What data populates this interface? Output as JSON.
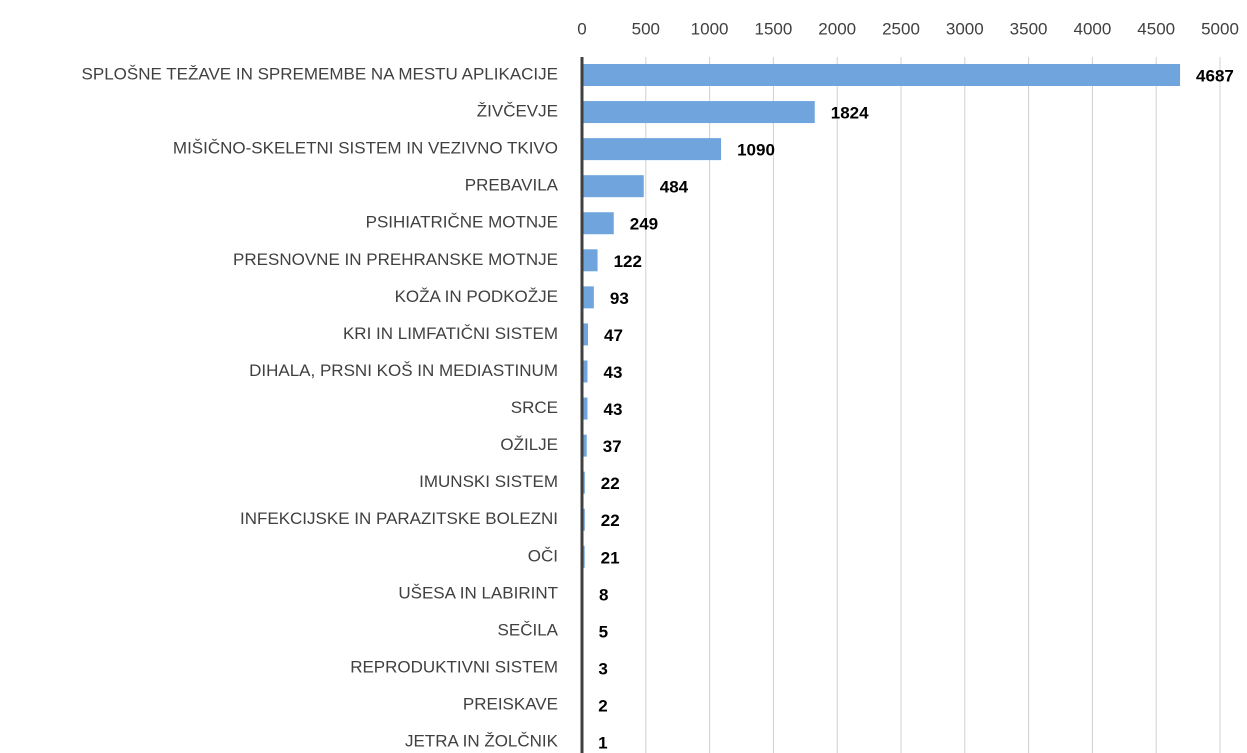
{
  "chart_data": {
    "type": "barh",
    "categories": [
      "SPLOŠNE TEŽAVE IN SPREMEMBE NA MESTU APLIKACIJE",
      "ŽIVČEVJE",
      "MIŠIČNO-SKELETNI SISTEM IN VEZIVNO TKIVO",
      "PREBAVILA",
      "PSIHIATRIČNE MOTNJE",
      "PRESNOVNE IN PREHRANSKE MOTNJE",
      "KOŽA IN PODKOŽJE",
      "KRI IN LIMFATIČNI SISTEM",
      "DIHALA, PRSNI KOŠ IN MEDIASTINUM",
      "SRCE",
      "OŽILJE",
      "IMUNSKI SISTEM",
      "INFEKCIJSKE IN PARAZITSKE BOLEZNI",
      "OČI",
      "UŠESA IN LABIRINT",
      "SEČILA",
      "REPRODUKTIVNI SISTEM",
      "PREISKAVE",
      "JETRA IN ŽOLČNIK"
    ],
    "values": [
      4687,
      1824,
      1090,
      484,
      249,
      122,
      93,
      47,
      43,
      43,
      37,
      22,
      22,
      21,
      8,
      5,
      3,
      2,
      1
    ],
    "color": "#6fa5dc",
    "xlim": [
      0,
      5000
    ],
    "xticks": [
      0,
      500,
      1000,
      1500,
      2000,
      2500,
      3000,
      3500,
      4000,
      4500,
      5000
    ],
    "grid": true
  }
}
